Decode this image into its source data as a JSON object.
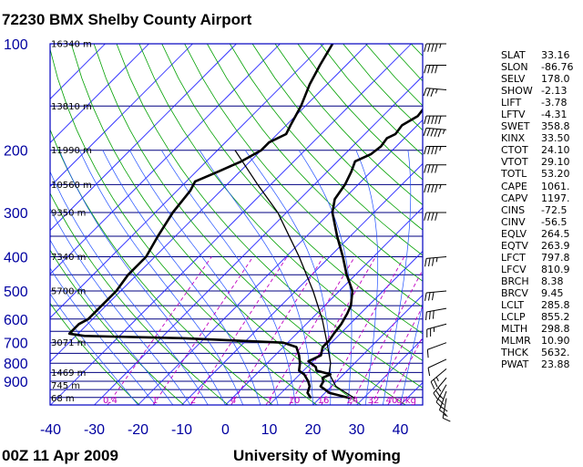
{
  "header": {
    "title": "72230 BMX Shelby County Airport"
  },
  "footer": {
    "time": "00Z 11 Apr 2009",
    "credit": "University of Wyoming"
  },
  "chart_data": {
    "type": "skew-t log-p diagram",
    "pressure_ticks": [
      "100",
      "200",
      "300",
      "400",
      "500",
      "600",
      "700",
      "800",
      "900"
    ],
    "temperature_ticks": [
      "-40",
      "-30",
      "-20",
      "-10",
      "0",
      "10",
      "20",
      "30",
      "40"
    ],
    "height_labels": [
      "16340 m",
      "13810 m",
      "11990 m",
      "10560 m",
      "9350 m",
      "7340 m",
      "5700 m",
      "3071 m",
      "1469 m",
      "745 m",
      "68 m"
    ],
    "mixing_ratio_labels": [
      "0.4",
      "1",
      "2",
      "4",
      "7",
      "10",
      "16",
      "24",
      "32",
      "40",
      "g/kg"
    ],
    "colors": {
      "isobar": "#000080",
      "isotherm": "#1a1aff",
      "dry_adiabat": "#00a000",
      "moist_adiabat": "#2050ff",
      "mixing_ratio": "#c000c0",
      "profile": "#000000",
      "frame": "#0000c0"
    },
    "temperature_profile": [
      {
        "p": 1005,
        "t": 27
      },
      {
        "p": 970,
        "t": 21
      },
      {
        "p": 930,
        "t": 17.5
      },
      {
        "p": 900,
        "t": 17
      },
      {
        "p": 880,
        "t": 16
      },
      {
        "p": 860,
        "t": 17
      },
      {
        "p": 840,
        "t": 13
      },
      {
        "p": 820,
        "t": 12
      },
      {
        "p": 790,
        "t": 9
      },
      {
        "p": 760,
        "t": 10.5
      },
      {
        "p": 720,
        "t": 9
      },
      {
        "p": 690,
        "t": 9
      },
      {
        "p": 660,
        "t": 8.5
      },
      {
        "p": 620,
        "t": 8
      },
      {
        "p": 580,
        "t": 7
      },
      {
        "p": 550,
        "t": 6
      },
      {
        "p": 500,
        "t": 3
      },
      {
        "p": 450,
        "t": -2
      },
      {
        "p": 400,
        "t": -7
      },
      {
        "p": 350,
        "t": -13
      },
      {
        "p": 300,
        "t": -19.5
      },
      {
        "p": 275,
        "t": -22
      },
      {
        "p": 250,
        "t": -23
      },
      {
        "p": 230,
        "t": -24.5
      },
      {
        "p": 215,
        "t": -26
      },
      {
        "p": 205,
        "t": -24
      },
      {
        "p": 195,
        "t": -23.5
      },
      {
        "p": 185,
        "t": -24
      },
      {
        "p": 180,
        "t": -23
      },
      {
        "p": 170,
        "t": -23.5
      },
      {
        "p": 160,
        "t": -22
      },
      {
        "p": 150,
        "t": -22.5
      },
      {
        "p": 140,
        "t": -21
      },
      {
        "p": 130,
        "t": -21.5
      },
      {
        "p": 125,
        "t": -20
      },
      {
        "p": 120,
        "t": -21
      },
      {
        "p": 115,
        "t": -19.5
      },
      {
        "p": 110,
        "t": -20.5
      },
      {
        "p": 105,
        "t": -19
      },
      {
        "p": 100,
        "t": -20
      }
    ],
    "dewpoint_profile": [
      {
        "p": 1005,
        "t": 18
      },
      {
        "p": 970,
        "t": 16
      },
      {
        "p": 930,
        "t": 15
      },
      {
        "p": 900,
        "t": 13.5
      },
      {
        "p": 860,
        "t": 11
      },
      {
        "p": 840,
        "t": 9
      },
      {
        "p": 800,
        "t": 7.5
      },
      {
        "p": 760,
        "t": 5.5
      },
      {
        "p": 720,
        "t": 3
      },
      {
        "p": 700,
        "t": -1
      },
      {
        "p": 680,
        "t": -25
      },
      {
        "p": 670,
        "t": -48
      },
      {
        "p": 660,
        "t": -52
      },
      {
        "p": 620,
        "t": -52
      },
      {
        "p": 600,
        "t": -51
      },
      {
        "p": 550,
        "t": -51
      },
      {
        "p": 500,
        "t": -51
      },
      {
        "p": 450,
        "t": -52
      },
      {
        "p": 400,
        "t": -52
      },
      {
        "p": 350,
        "t": -54
      },
      {
        "p": 300,
        "t": -56
      },
      {
        "p": 260,
        "t": -57
      },
      {
        "p": 245,
        "t": -58
      },
      {
        "p": 230,
        "t": -55
      },
      {
        "p": 215,
        "t": -52
      },
      {
        "p": 200,
        "t": -50
      },
      {
        "p": 190,
        "t": -50
      },
      {
        "p": 180,
        "t": -48
      },
      {
        "p": 170,
        "t": -49
      },
      {
        "p": 150,
        "t": -51
      },
      {
        "p": 130,
        "t": -54
      },
      {
        "p": 115,
        "t": -56
      },
      {
        "p": 100,
        "t": -58
      }
    ],
    "parcel_profile": [
      {
        "p": 1005,
        "t": 28
      },
      {
        "p": 930,
        "t": 21
      },
      {
        "p": 855,
        "t": 16.5
      },
      {
        "p": 800,
        "t": 14.5
      },
      {
        "p": 700,
        "t": 9
      },
      {
        "p": 600,
        "t": 2.5
      },
      {
        "p": 500,
        "t": -6
      },
      {
        "p": 400,
        "t": -17
      },
      {
        "p": 300,
        "t": -32
      },
      {
        "p": 250,
        "t": -43
      },
      {
        "p": 200,
        "t": -56
      }
    ],
    "wind_barbs": [
      {
        "p": 100,
        "dir": 270,
        "kt": 45
      },
      {
        "p": 115,
        "dir": 270,
        "kt": 40
      },
      {
        "p": 135,
        "dir": 275,
        "kt": 35
      },
      {
        "p": 160,
        "dir": 270,
        "kt": 50
      },
      {
        "p": 175,
        "dir": 275,
        "kt": 55
      },
      {
        "p": 195,
        "dir": 270,
        "kt": 45
      },
      {
        "p": 220,
        "dir": 270,
        "kt": 40
      },
      {
        "p": 250,
        "dir": 270,
        "kt": 45
      },
      {
        "p": 300,
        "dir": 270,
        "kt": 40
      },
      {
        "p": 400,
        "dir": 265,
        "kt": 35
      },
      {
        "p": 500,
        "dir": 265,
        "kt": 30
      },
      {
        "p": 560,
        "dir": 260,
        "kt": 30
      },
      {
        "p": 620,
        "dir": 255,
        "kt": 25
      },
      {
        "p": 700,
        "dir": 250,
        "kt": 10
      },
      {
        "p": 780,
        "dir": 245,
        "kt": 10
      },
      {
        "p": 830,
        "dir": 230,
        "kt": 25
      },
      {
        "p": 880,
        "dir": 220,
        "kt": 25
      },
      {
        "p": 920,
        "dir": 210,
        "kt": 25
      },
      {
        "p": 960,
        "dir": 200,
        "kt": 20
      },
      {
        "p": 1005,
        "dir": 190,
        "kt": 15
      }
    ]
  },
  "indices": [
    {
      "name": "SLAT",
      "value": "33.16"
    },
    {
      "name": "SLON",
      "value": "-86.76"
    },
    {
      "name": "SELV",
      "value": "178.0"
    },
    {
      "name": "SHOW",
      "value": "-2.13"
    },
    {
      "name": "LIFT",
      "value": "-3.78"
    },
    {
      "name": "LFTV",
      "value": "-4.31"
    },
    {
      "name": "SWET",
      "value": "358.8"
    },
    {
      "name": "KINX",
      "value": "33.50"
    },
    {
      "name": "CTOT",
      "value": "24.10"
    },
    {
      "name": "VTOT",
      "value": "29.10"
    },
    {
      "name": "TOTL",
      "value": "53.20"
    },
    {
      "name": "CAPE",
      "value": "1061."
    },
    {
      "name": "CAPV",
      "value": "1197."
    },
    {
      "name": "CINS",
      "value": "-72.5"
    },
    {
      "name": "CINV",
      "value": "-56.5"
    },
    {
      "name": "EQLV",
      "value": "264.5"
    },
    {
      "name": "EQTV",
      "value": "263.9"
    },
    {
      "name": "LFCT",
      "value": "797.8"
    },
    {
      "name": "LFCV",
      "value": "810.9"
    },
    {
      "name": "BRCH",
      "value": "8.38"
    },
    {
      "name": "BRCV",
      "value": "9.45"
    },
    {
      "name": "LCLT",
      "value": "285.8"
    },
    {
      "name": "LCLP",
      "value": "855.2"
    },
    {
      "name": "MLTH",
      "value": "298.8"
    },
    {
      "name": "MLMR",
      "value": "10.90"
    },
    {
      "name": "THCK",
      "value": "5632."
    },
    {
      "name": "PWAT",
      "value": "23.88"
    }
  ]
}
